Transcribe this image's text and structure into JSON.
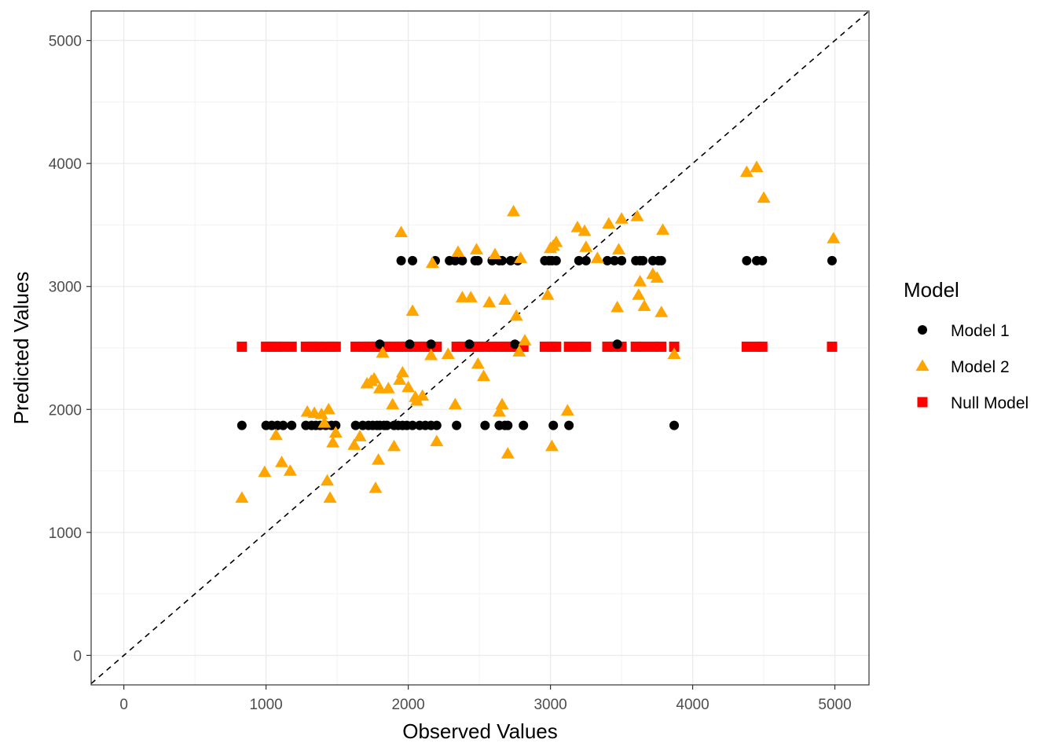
{
  "chart_data": {
    "type": "scatter",
    "title": "",
    "xlabel": "Observed Values",
    "ylabel": "Predicted Values",
    "xlim": [
      -230,
      5240
    ],
    "ylim": [
      -240,
      5240
    ],
    "x_ticks": [
      0,
      1000,
      2000,
      3000,
      4000,
      5000
    ],
    "y_ticks": [
      0,
      1000,
      2000,
      3000,
      4000,
      5000
    ],
    "grid": true,
    "reference_line": "y = x (dashed)",
    "legend": {
      "title": "Model",
      "position": "right"
    },
    "series": [
      {
        "name": "Model 1",
        "marker": "circle",
        "color": "#000000",
        "x": [
          830,
          1000,
          1040,
          1080,
          1120,
          1180,
          1280,
          1320,
          1350,
          1380,
          1420,
          1460,
          1490,
          1630,
          1680,
          1720,
          1750,
          1780,
          1800,
          1830,
          1850,
          1900,
          1930,
          1960,
          1990,
          2030,
          2080,
          2120,
          2160,
          2200,
          2340,
          2540,
          2640,
          2680,
          2700,
          2810,
          3020,
          3130,
          3870,
          1800,
          2010,
          2160,
          2430,
          2750,
          3470,
          1950,
          2030,
          2190,
          2290,
          2330,
          2380,
          2470,
          2490,
          2590,
          2640,
          2660,
          2720,
          2770,
          2960,
          2990,
          3010,
          3040,
          3200,
          3250,
          3400,
          3450,
          3500,
          3600,
          3630,
          3650,
          3720,
          3760,
          3780,
          4380,
          4450,
          4490,
          4980
        ],
        "y": [
          1870,
          1870,
          1870,
          1870,
          1870,
          1870,
          1870,
          1870,
          1870,
          1870,
          1870,
          1870,
          1870,
          1870,
          1870,
          1870,
          1870,
          1870,
          1870,
          1870,
          1870,
          1870,
          1870,
          1870,
          1870,
          1870,
          1870,
          1870,
          1870,
          1870,
          1870,
          1870,
          1870,
          1870,
          1870,
          1870,
          1870,
          1870,
          1870,
          2530,
          2530,
          2530,
          2530,
          2530,
          2530,
          3210,
          3210,
          3210,
          3210,
          3210,
          3210,
          3210,
          3210,
          3210,
          3210,
          3210,
          3210,
          3210,
          3210,
          3210,
          3210,
          3210,
          3210,
          3210,
          3210,
          3210,
          3210,
          3210,
          3210,
          3210,
          3210,
          3210,
          3210,
          3210,
          3210,
          3210,
          3210
        ]
      },
      {
        "name": "Model 2",
        "marker": "triangle",
        "color": "#FFA500",
        "x": [
          830,
          990,
          1070,
          1110,
          1170,
          1290,
          1340,
          1390,
          1410,
          1430,
          1440,
          1450,
          1470,
          1490,
          1620,
          1660,
          1710,
          1740,
          1770,
          1790,
          1800,
          1820,
          1860,
          1890,
          1900,
          1940,
          1960,
          2000,
          2030,
          2060,
          2100,
          2160,
          2170,
          2200,
          2280,
          2330,
          2350,
          2380,
          2440,
          2480,
          2490,
          2530,
          2570,
          2610,
          2640,
          2660,
          2680,
          2700,
          2760,
          2780,
          2790,
          2820,
          2980,
          3000,
          3010,
          3020,
          3040,
          3120,
          3190,
          3240,
          3250,
          3330,
          3410,
          3470,
          3480,
          3500,
          3610,
          3620,
          3630,
          3660,
          3720,
          3750,
          3780,
          3790,
          3870,
          4380,
          4450,
          4500,
          4990,
          1950,
          2740,
          2050,
          1760
        ],
        "y": [
          1280,
          1490,
          1790,
          1570,
          1500,
          1980,
          1970,
          1960,
          1890,
          1420,
          2000,
          1280,
          1730,
          1810,
          1710,
          1780,
          2210,
          2230,
          1360,
          1590,
          2170,
          2460,
          2170,
          2040,
          1700,
          2240,
          2300,
          2180,
          2800,
          2070,
          2110,
          2440,
          3190,
          1740,
          2450,
          2040,
          3280,
          2910,
          2910,
          3300,
          2370,
          2270,
          2870,
          3260,
          1980,
          2040,
          2890,
          1640,
          2760,
          2470,
          3230,
          2560,
          2930,
          3310,
          1700,
          3330,
          3360,
          1990,
          3480,
          3450,
          3320,
          3230,
          3510,
          2830,
          3300,
          3550,
          3570,
          2930,
          3040,
          2840,
          3100,
          3070,
          2790,
          3460,
          2450,
          3930,
          3970,
          3720,
          3390,
          3440,
          3610,
          2100,
          2250
        ]
      },
      {
        "name": "Null Model",
        "marker": "square",
        "color": "#FF0000",
        "x": [
          830,
          1000,
          1040,
          1080,
          1120,
          1180,
          1280,
          1320,
          1350,
          1380,
          1420,
          1460,
          1490,
          1630,
          1680,
          1720,
          1750,
          1780,
          1800,
          1830,
          1850,
          1900,
          1930,
          1960,
          1990,
          2030,
          2080,
          2120,
          2160,
          2200,
          2340,
          2380,
          2430,
          2470,
          2490,
          2540,
          2590,
          2640,
          2680,
          2720,
          2750,
          2810,
          2960,
          3010,
          3040,
          3130,
          3200,
          3250,
          3400,
          3450,
          3500,
          3600,
          3650,
          3720,
          3780,
          3870,
          4380,
          4450,
          4490,
          4980
        ],
        "y": [
          2510,
          2510,
          2510,
          2510,
          2510,
          2510,
          2510,
          2510,
          2510,
          2510,
          2510,
          2510,
          2510,
          2510,
          2510,
          2510,
          2510,
          2510,
          2510,
          2510,
          2510,
          2510,
          2510,
          2510,
          2510,
          2510,
          2510,
          2510,
          2510,
          2510,
          2510,
          2510,
          2510,
          2510,
          2510,
          2510,
          2510,
          2510,
          2510,
          2510,
          2510,
          2510,
          2510,
          2510,
          2510,
          2510,
          2510,
          2510,
          2510,
          2510,
          2510,
          2510,
          2510,
          2510,
          2510,
          2510,
          2510,
          2510,
          2510,
          2510
        ]
      }
    ]
  }
}
